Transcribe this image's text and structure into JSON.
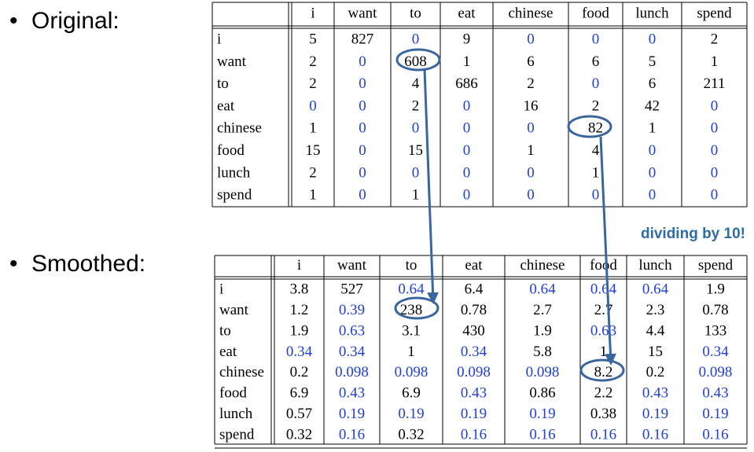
{
  "bullets": [
    "Original:",
    "Smoothed:"
  ],
  "annotation": "dividing by 10!",
  "original": {
    "columns": [
      "i",
      "want",
      "to",
      "eat",
      "chinese",
      "food",
      "lunch",
      "spend"
    ],
    "rows": [
      {
        "label": "i",
        "cells": [
          5,
          827,
          0,
          9,
          0,
          0,
          0,
          2
        ]
      },
      {
        "label": "want",
        "cells": [
          2,
          0,
          608,
          1,
          6,
          6,
          5,
          1
        ]
      },
      {
        "label": "to",
        "cells": [
          2,
          0,
          4,
          686,
          2,
          0,
          6,
          211
        ]
      },
      {
        "label": "eat",
        "cells": [
          0,
          0,
          2,
          0,
          16,
          2,
          42,
          0
        ]
      },
      {
        "label": "chinese",
        "cells": [
          1,
          0,
          0,
          0,
          0,
          82,
          1,
          0
        ]
      },
      {
        "label": "food",
        "cells": [
          15,
          0,
          15,
          0,
          1,
          4,
          0,
          0
        ]
      },
      {
        "label": "lunch",
        "cells": [
          2,
          0,
          0,
          0,
          0,
          1,
          0,
          0
        ]
      },
      {
        "label": "spend",
        "cells": [
          1,
          0,
          1,
          0,
          0,
          0,
          0,
          0
        ]
      }
    ]
  },
  "smoothed": {
    "columns": [
      "i",
      "want",
      "to",
      "eat",
      "chinese",
      "food",
      "lunch",
      "spend"
    ],
    "rows": [
      {
        "label": "i",
        "cells": [
          3.8,
          527,
          0.64,
          6.4,
          0.64,
          0.64,
          0.64,
          1.9
        ]
      },
      {
        "label": "want",
        "cells": [
          1.2,
          0.39,
          238,
          0.78,
          2.7,
          2.7,
          2.3,
          0.78
        ]
      },
      {
        "label": "to",
        "cells": [
          1.9,
          0.63,
          3.1,
          430,
          1.9,
          0.63,
          4.4,
          133
        ]
      },
      {
        "label": "eat",
        "cells": [
          0.34,
          0.34,
          1,
          0.34,
          5.8,
          1,
          15,
          0.34
        ]
      },
      {
        "label": "chinese",
        "cells": [
          0.2,
          0.098,
          0.098,
          0.098,
          0.098,
          8.2,
          0.2,
          0.098
        ]
      },
      {
        "label": "food",
        "cells": [
          6.9,
          0.43,
          6.9,
          0.43,
          0.86,
          2.2,
          0.43,
          0.43
        ]
      },
      {
        "label": "lunch",
        "cells": [
          0.57,
          0.19,
          0.19,
          0.19,
          0.19,
          0.38,
          0.19,
          0.19
        ]
      },
      {
        "label": "spend",
        "cells": [
          0.32,
          0.16,
          0.32,
          0.16,
          0.16,
          0.16,
          0.16,
          0.16
        ]
      }
    ]
  }
}
